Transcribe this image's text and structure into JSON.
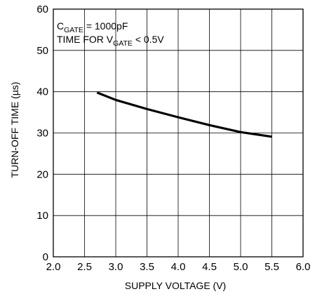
{
  "chart_data": {
    "type": "line",
    "xlabel": "SUPPLY VOLTAGE (V)",
    "ylabel": "TURN-OFF TIME (µs)",
    "xlim": [
      2.0,
      6.0
    ],
    "ylim": [
      0,
      60
    ],
    "x_ticks": [
      "2.0",
      "2.5",
      "3.0",
      "3.5",
      "4.0",
      "4.5",
      "5.0",
      "5.5",
      "6.0"
    ],
    "y_ticks": [
      "0",
      "10",
      "20",
      "30",
      "40",
      "50",
      "60"
    ],
    "grid": true,
    "annotations": {
      "line1": {
        "main": "C",
        "sub": "GATE",
        "rest": " = 1000pF"
      },
      "line2": {
        "main": "TIME FOR V",
        "sub": "GATE",
        "rest": " < 0.5V"
      }
    },
    "series": [
      {
        "x": [
          2.7,
          3.0,
          3.5,
          4.0,
          4.5,
          5.0,
          5.5
        ],
        "y": [
          39.8,
          38.0,
          35.8,
          33.8,
          31.9,
          30.2,
          29.1
        ]
      }
    ]
  }
}
